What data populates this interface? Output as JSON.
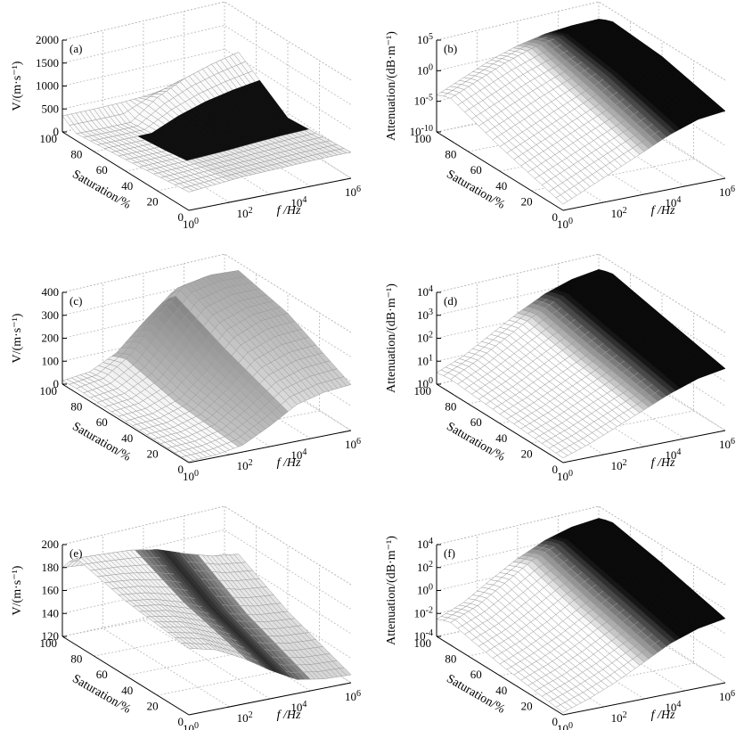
{
  "chart_data": [
    {
      "id": "a",
      "type": "surface",
      "panel_label": "(a)",
      "zlabel": "V/(m·s⁻¹)",
      "z_scale": "linear",
      "z_ticks": [
        "0",
        "500",
        "1000",
        "1500",
        "2000"
      ],
      "zlim": [
        0,
        2000
      ],
      "xlabel": "f /Hz",
      "x_scale": "log",
      "x_ticks": [
        {
          "b": "10",
          "e": "0"
        },
        {
          "b": "10",
          "e": "2"
        },
        {
          "b": "10",
          "e": "4"
        },
        {
          "b": "10",
          "e": "6"
        }
      ],
      "xlim": [
        1,
        1000000
      ],
      "ylabel": "Saturation/%",
      "y_ticks": [
        "0",
        "20",
        "40",
        "60",
        "80",
        "100"
      ],
      "ylim": [
        0,
        100
      ],
      "surface": {
        "x_log10": [
          0,
          1,
          2,
          3,
          4,
          5,
          6
        ],
        "saturation": [
          0,
          50,
          90,
          100
        ],
        "z": [
          [
            400,
            450,
            500,
            520,
            540,
            560,
            570
          ],
          [
            250,
            260,
            280,
            320,
            380,
            430,
            460
          ],
          [
            150,
            150,
            160,
            600,
            900,
            1100,
            1250
          ],
          [
            350,
            360,
            380,
            420,
            500,
            560,
            600
          ]
        ]
      },
      "shading": "black-band-mid-saturation"
    },
    {
      "id": "b",
      "type": "surface",
      "panel_label": "(b)",
      "zlabel": "Attenuation/(dB·m⁻¹)",
      "z_scale": "log",
      "z_ticks": [
        {
          "b": "10",
          "e": "-10"
        },
        {
          "b": "10",
          "e": "-5"
        },
        {
          "b": "10",
          "e": "0"
        },
        {
          "b": "10",
          "e": "5"
        }
      ],
      "zlim_log10": [
        -10,
        5
      ],
      "xlabel": "f /Hz",
      "x_scale": "log",
      "x_ticks": [
        {
          "b": "10",
          "e": "0"
        },
        {
          "b": "10",
          "e": "2"
        },
        {
          "b": "10",
          "e": "4"
        },
        {
          "b": "10",
          "e": "6"
        }
      ],
      "ylabel": "Saturation/%",
      "y_ticks": [
        "0",
        "20",
        "40",
        "60",
        "80",
        "100"
      ],
      "surface": {
        "x_log10": [
          0,
          1,
          2,
          3,
          4,
          5,
          6
        ],
        "saturation": [
          0,
          50,
          90,
          100
        ],
        "z_log10": [
          [
            -9,
            -7,
            -5,
            -3,
            -1,
            0.5,
            1
          ],
          [
            -6,
            -4,
            -2,
            0,
            2,
            3,
            3.5
          ],
          [
            -3,
            -1,
            1,
            2.5,
            3.5,
            4,
            4.2
          ],
          [
            -4,
            -2,
            0,
            1.5,
            2.5,
            3,
            3.2
          ]
        ]
      },
      "shading": "black-high-frequency"
    },
    {
      "id": "c",
      "type": "surface",
      "panel_label": "(c)",
      "zlabel": "V/(m·s⁻¹)",
      "z_scale": "linear",
      "z_ticks": [
        "0",
        "100",
        "200",
        "300",
        "400"
      ],
      "zlim": [
        0,
        400
      ],
      "xlabel": "f /Hz",
      "x_scale": "log",
      "x_ticks": [
        {
          "b": "10",
          "e": "0"
        },
        {
          "b": "10",
          "e": "2"
        },
        {
          "b": "10",
          "e": "4"
        },
        {
          "b": "10",
          "e": "6"
        }
      ],
      "ylabel": "Saturation/%",
      "y_ticks": [
        "0",
        "20",
        "40",
        "60",
        "80",
        "100"
      ],
      "surface": {
        "x_log10": [
          0,
          1,
          2,
          3,
          4,
          5,
          6
        ],
        "saturation": [
          0,
          50,
          90,
          100
        ],
        "z": [
          [
            5,
            10,
            30,
            90,
            160,
            190,
            200
          ],
          [
            10,
            20,
            60,
            160,
            280,
            330,
            340
          ],
          [
            20,
            40,
            120,
            260,
            380,
            400,
            395
          ],
          [
            15,
            30,
            90,
            200,
            300,
            330,
            330
          ]
        ]
      },
      "shading": "gray-gradient"
    },
    {
      "id": "d",
      "type": "surface",
      "panel_label": "(d)",
      "zlabel": "Attenuation/(dB·m⁻¹)",
      "z_scale": "log",
      "z_ticks": [
        {
          "b": "10",
          "e": "0"
        },
        {
          "b": "10",
          "e": "1"
        },
        {
          "b": "10",
          "e": "2"
        },
        {
          "b": "10",
          "e": "3"
        },
        {
          "b": "10",
          "e": "4"
        }
      ],
      "zlim_log10": [
        0,
        4
      ],
      "xlabel": "f /Hz",
      "x_scale": "log",
      "x_ticks": [
        {
          "b": "10",
          "e": "0"
        },
        {
          "b": "10",
          "e": "2"
        },
        {
          "b": "10",
          "e": "4"
        },
        {
          "b": "10",
          "e": "6"
        }
      ],
      "ylabel": "Saturation/%",
      "y_ticks": [
        "0",
        "20",
        "40",
        "60",
        "80",
        "100"
      ],
      "surface": {
        "x_log10": [
          0,
          1,
          2,
          3,
          4,
          5,
          6
        ],
        "saturation": [
          0,
          50,
          90,
          100
        ],
        "z_log10": [
          [
            0.2,
            0.6,
            1.1,
            1.6,
            2.1,
            2.5,
            2.7
          ],
          [
            0.4,
            0.9,
            1.5,
            2.1,
            2.7,
            3.1,
            3.3
          ],
          [
            0.6,
            1.2,
            1.9,
            2.6,
            3.2,
            3.6,
            3.8
          ],
          [
            0.5,
            1.0,
            1.7,
            2.4,
            3.0,
            3.4,
            3.6
          ]
        ]
      },
      "shading": "black-high-frequency"
    },
    {
      "id": "e",
      "type": "surface",
      "panel_label": "(e)",
      "zlabel": "V/(m·s⁻¹)",
      "z_scale": "linear",
      "z_ticks": [
        "120",
        "140",
        "160",
        "180",
        "200"
      ],
      "zlim": [
        120,
        200
      ],
      "xlabel": "f /Hz",
      "x_scale": "log",
      "x_ticks": [
        {
          "b": "10",
          "e": "0"
        },
        {
          "b": "10",
          "e": "2"
        },
        {
          "b": "10",
          "e": "4"
        },
        {
          "b": "10",
          "e": "6"
        }
      ],
      "ylabel": "Saturation/%",
      "y_ticks": [
        "0",
        "20",
        "40",
        "60",
        "80",
        "100"
      ],
      "surface": {
        "x_log10": [
          0,
          1,
          2,
          3,
          4,
          5,
          6
        ],
        "saturation": [
          0,
          50,
          90,
          100
        ],
        "z": [
          [
            178,
            172,
            160,
            145,
            132,
            128,
            127
          ],
          [
            185,
            182,
            175,
            165,
            155,
            150,
            148
          ],
          [
            196,
            195,
            194,
            190,
            182,
            175,
            172
          ],
          [
            180,
            178,
            172,
            162,
            152,
            148,
            146
          ]
        ]
      },
      "shading": "dark-mid-frequency"
    },
    {
      "id": "f",
      "type": "surface",
      "panel_label": "(f)",
      "zlabel": "Attenuation/(dB·m⁻¹)",
      "z_scale": "log",
      "z_ticks": [
        {
          "b": "10",
          "e": "-4"
        },
        {
          "b": "10",
          "e": "-2"
        },
        {
          "b": "10",
          "e": "0"
        },
        {
          "b": "10",
          "e": "2"
        },
        {
          "b": "10",
          "e": "4"
        }
      ],
      "zlim_log10": [
        -4,
        4
      ],
      "xlabel": "f /Hz",
      "x_scale": "log",
      "x_ticks": [
        {
          "b": "10",
          "e": "0"
        },
        {
          "b": "10",
          "e": "2"
        },
        {
          "b": "10",
          "e": "4"
        },
        {
          "b": "10",
          "e": "6"
        }
      ],
      "ylabel": "Saturation/%",
      "y_ticks": [
        "0",
        "20",
        "40",
        "60",
        "80",
        "100"
      ],
      "surface": {
        "x_log10": [
          0,
          1,
          2,
          3,
          4,
          5,
          6
        ],
        "saturation": [
          0,
          50,
          90,
          100
        ],
        "z_log10": [
          [
            -3.8,
            -3,
            -2,
            -0.8,
            0.4,
            1.2,
            1.6
          ],
          [
            -3,
            -2,
            -0.8,
            0.6,
            1.8,
            2.6,
            3
          ],
          [
            -2,
            -1,
            0.5,
            2,
            3,
            3.6,
            3.9
          ],
          [
            -2.5,
            -1.5,
            0,
            1.4,
            2.5,
            3.2,
            3.5
          ]
        ]
      },
      "shading": "black-high-frequency"
    }
  ]
}
